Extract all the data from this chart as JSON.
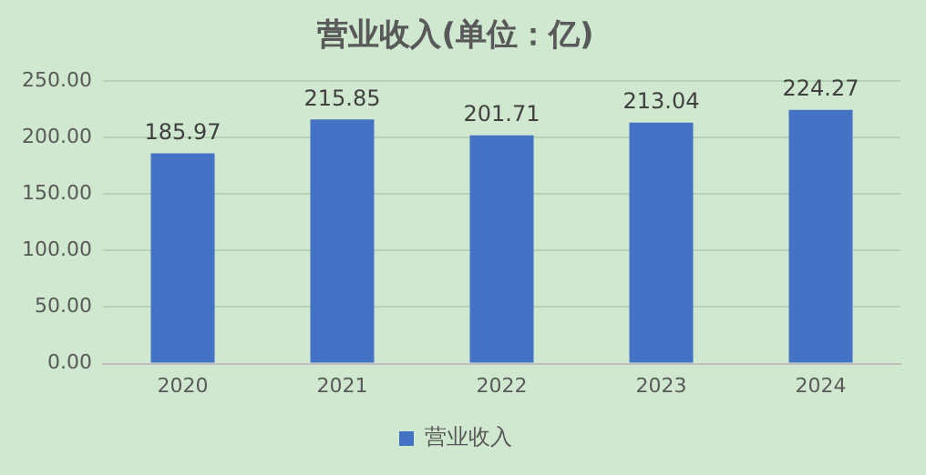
{
  "chart_data": {
    "type": "bar",
    "title": "营业收入(单位：亿)",
    "categories": [
      "2020",
      "2021",
      "2022",
      "2023",
      "2024"
    ],
    "series": [
      {
        "name": "营业收入",
        "color": "#4472c4",
        "values": [
          185.97,
          215.85,
          201.71,
          213.04,
          224.27
        ]
      }
    ],
    "ylim": [
      0,
      250
    ],
    "yticks": [
      {
        "value": 0,
        "label": "0.00"
      },
      {
        "value": 50,
        "label": "50.00"
      },
      {
        "value": 100,
        "label": "100.00"
      },
      {
        "value": 150,
        "label": "150.00"
      },
      {
        "value": 200,
        "label": "200.00"
      },
      {
        "value": 250,
        "label": "250.00"
      }
    ],
    "grid": "y",
    "legend": "bottom",
    "data_labels": true
  }
}
